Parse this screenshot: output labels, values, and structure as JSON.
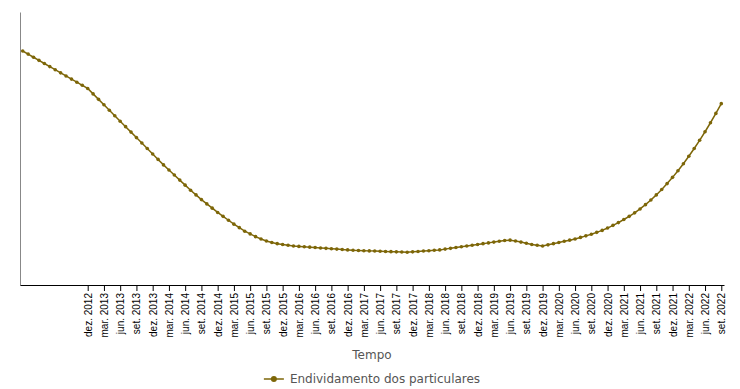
{
  "chart_data": {
    "type": "line",
    "xlabel": "Tempo",
    "categories": [
      null,
      null,
      null,
      null,
      null,
      null,
      null,
      null,
      null,
      null,
      null,
      null,
      "dez. 2012",
      null,
      null,
      "mar. 2013",
      null,
      null,
      "jun. 2013",
      null,
      null,
      "set. 2013",
      null,
      null,
      "dez. 2013",
      null,
      null,
      "mar. 2014",
      null,
      null,
      "jun. 2014",
      null,
      null,
      "set. 2014",
      null,
      null,
      "dez. 2014",
      null,
      null,
      "mar. 2015",
      null,
      null,
      "jun. 2015",
      null,
      null,
      "set. 2015",
      null,
      null,
      "dez. 2015",
      null,
      null,
      "mar. 2016",
      null,
      null,
      "jun. 2016",
      null,
      null,
      "set. 2016",
      null,
      null,
      "dez. 2016",
      null,
      null,
      "mar. 2017",
      null,
      null,
      "jun. 2017",
      null,
      null,
      "set. 2017",
      null,
      null,
      "dez. 2017",
      null,
      null,
      "mar. 2018",
      null,
      null,
      "jun. 2018",
      null,
      null,
      "set. 2018",
      null,
      null,
      "dez. 2018",
      null,
      null,
      "mar. 2019",
      null,
      null,
      "jun. 2019",
      null,
      null,
      "set. 2019",
      null,
      null,
      "dez. 2019",
      null,
      null,
      "mar. 2020",
      null,
      null,
      "jun. 2020",
      null,
      null,
      "set. 2020",
      null,
      null,
      "dez. 2020",
      null,
      null,
      "mar. 2021",
      null,
      null,
      "jun. 2021",
      null,
      null,
      "set. 2021",
      null,
      null,
      "dez. 2021",
      null,
      null,
      "mar. 2022",
      null,
      null,
      "jun. 2022",
      null,
      null,
      "set. 2022"
    ],
    "series": [
      {
        "name": "Endividamento dos particulares",
        "color": "#7d6608",
        "marker": "circle",
        "values": [
          115.0,
          114.2,
          113.4,
          112.6,
          111.8,
          111.0,
          110.2,
          109.4,
          108.6,
          107.8,
          107.0,
          106.2,
          105.4,
          104.0,
          102.6,
          101.2,
          99.8,
          98.4,
          97.0,
          95.6,
          94.2,
          92.8,
          91.4,
          90.0,
          88.6,
          87.2,
          85.8,
          84.5,
          83.2,
          81.9,
          80.6,
          79.3,
          78.1,
          76.9,
          75.8,
          74.7,
          73.6,
          72.6,
          71.6,
          70.6,
          69.7,
          68.8,
          68.1,
          67.4,
          66.8,
          66.3,
          65.9,
          65.6,
          65.4,
          65.2,
          65.0,
          64.9,
          64.8,
          64.7,
          64.6,
          64.5,
          64.4,
          64.3,
          64.2,
          64.1,
          64.0,
          63.9,
          63.85,
          63.8,
          63.75,
          63.7,
          63.65,
          63.6,
          63.55,
          63.5,
          63.45,
          63.4,
          63.5,
          63.6,
          63.7,
          63.8,
          63.9,
          64.0,
          64.2,
          64.4,
          64.6,
          64.8,
          65.0,
          65.2,
          65.4,
          65.6,
          65.8,
          66.0,
          66.2,
          66.4,
          66.5,
          66.3,
          66.0,
          65.7,
          65.4,
          65.2,
          65.0,
          65.3,
          65.6,
          65.9,
          66.2,
          66.5,
          66.8,
          67.2,
          67.6,
          68.0,
          68.5,
          69.0,
          69.6,
          70.3,
          71.0,
          71.8,
          72.6,
          73.5,
          74.5,
          75.6,
          76.8,
          78.1,
          79.5,
          81.0,
          82.6,
          84.3,
          86.1,
          88.0,
          90.0,
          92.1,
          94.3,
          96.6,
          99.0,
          101.5
        ]
      }
    ],
    "ylim": [
      55,
      125
    ],
    "grid": false,
    "tick_labels": "x",
    "legend": "bottom"
  }
}
